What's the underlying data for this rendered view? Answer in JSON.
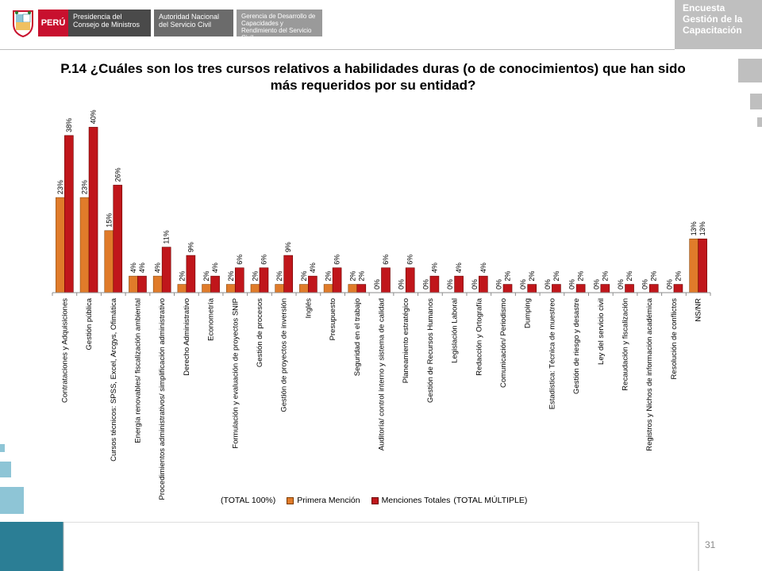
{
  "header": {
    "country": "PERÚ",
    "entity1": "Presidencia del Consejo de Ministros",
    "entity2": "Autoridad Nacional del Servicio Civil",
    "entity3": "Gerencia de Desarrollo de Capacidades y Rendimiento del Servicio Civil",
    "survey_line1": "Encuesta",
    "survey_line2": "Gestión de la",
    "survey_line3": "Capacitación"
  },
  "page_number": "31",
  "colors": {
    "primera": "#e07b2a",
    "totales": "#c0161b",
    "teal": "#2b7e95",
    "light_teal": "#8ec5d6",
    "grey": "#bfbfbf"
  },
  "chart_data": {
    "type": "bar",
    "title": "P.14 ¿Cuáles son los tres cursos relativos a habilidades duras (o de conocimientos) que han sido más requeridos por su entidad?",
    "ylim": [
      0,
      42
    ],
    "grid": false,
    "legend_position": "bottom",
    "legend_note_left": "(TOTAL 100%)",
    "legend_note_right": "(TOTAL MÚLTIPLE)",
    "categories": [
      "Contrataciones y Adquisiciones",
      "Gestión pública",
      "Cursos técnicos: SPSS, Excel, Arcgys, Ofimática",
      "Energía renovables/ fiscalización ambiental",
      "Procedimientos administrativos/ simplificación administrativo",
      "Derecho Administrativo",
      "Econometría",
      "Formulación y evaluación de proyectos SNIP",
      "Gestión de procesos",
      "Gestión de proyectos de inversión",
      "Inglés",
      "Presupuesto",
      "Seguridad en el trabajo",
      "Auditoría/ control interno y sistema de calidad",
      "Planeamiento estratégico",
      "Gestión de Recursos Humanos",
      "Legislación Laboral",
      "Redacción y Ortografía",
      "Comunicación/ Periodismo",
      "Dumping",
      "Estadística: Técnica de muestreo",
      "Gestión de riesgo y desastre",
      "Ley del servicio civil",
      "Recaudación y fiscalización",
      "Registros y Nichos de información académica",
      "Resolución de conflictos",
      "NS/NR"
    ],
    "series": [
      {
        "name": "Primera Mención",
        "values": [
          23,
          23,
          15,
          4,
          4,
          2,
          2,
          2,
          2,
          2,
          2,
          2,
          2,
          0,
          0,
          0,
          0,
          0,
          0,
          0,
          0,
          0,
          0,
          0,
          0,
          0,
          13
        ]
      },
      {
        "name": "Menciones Totales",
        "values": [
          38,
          40,
          26,
          4,
          11,
          9,
          4,
          6,
          6,
          9,
          4,
          6,
          2,
          6,
          6,
          4,
          4,
          4,
          2,
          2,
          2,
          2,
          2,
          2,
          2,
          2,
          13
        ]
      }
    ]
  }
}
